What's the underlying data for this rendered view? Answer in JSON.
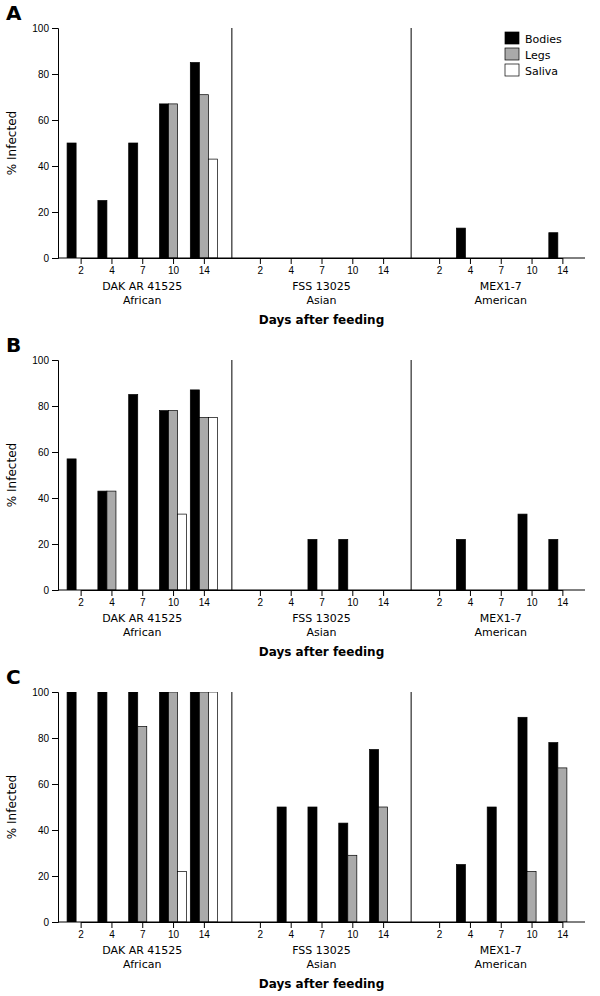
{
  "chart_data": [
    {
      "type": "bar",
      "title": "A",
      "categories": [
        "2",
        "4",
        "7",
        "10",
        "14",
        "2",
        "4",
        "7",
        "10",
        "14",
        "2",
        "4",
        "7",
        "10",
        "14"
      ],
      "annotations": [
        [
          "DAK AR 41525",
          "African"
        ],
        [
          "FSS 13025",
          "Asian"
        ],
        [
          "MEX1-7",
          "American"
        ]
      ],
      "series": [
        {
          "name": "Bodies",
          "color": "#000000",
          "values": [
            50,
            25,
            50,
            67,
            85,
            0,
            0,
            0,
            0,
            0,
            0,
            13,
            0,
            0,
            11
          ]
        },
        {
          "name": "Legs",
          "color": "#aaaaaa",
          "values": [
            0,
            0,
            0,
            67,
            71,
            0,
            0,
            0,
            0,
            0,
            0,
            0,
            0,
            0,
            0
          ]
        },
        {
          "name": "Saliva",
          "color": "#ffffff",
          "values": [
            0,
            0,
            0,
            0,
            43,
            0,
            0,
            0,
            0,
            0,
            0,
            0,
            0,
            0,
            0
          ]
        }
      ],
      "y_label": "% Infected",
      "x_label": "Days after feeding",
      "ylim": [
        0,
        100
      ],
      "yticks": [
        0,
        20,
        40,
        60,
        80,
        100
      ],
      "grid": false,
      "legend": "upper right"
    },
    {
      "type": "bar",
      "title": "B",
      "categories": [
        "2",
        "4",
        "7",
        "10",
        "14",
        "2",
        "4",
        "7",
        "10",
        "14",
        "2",
        "4",
        "7",
        "10",
        "14"
      ],
      "annotations": [
        [
          "DAK AR 41525",
          "African"
        ],
        [
          "FSS 13025",
          "Asian"
        ],
        [
          "MEX1-7",
          "American"
        ]
      ],
      "series": [
        {
          "name": "Bodies",
          "color": "#000000",
          "values": [
            57,
            43,
            85,
            78,
            87,
            0,
            0,
            22,
            22,
            0,
            0,
            22,
            0,
            33,
            22
          ]
        },
        {
          "name": "Legs",
          "color": "#aaaaaa",
          "values": [
            0,
            43,
            0,
            78,
            75,
            0,
            0,
            0,
            0,
            0,
            0,
            0,
            0,
            0,
            0
          ]
        },
        {
          "name": "Saliva",
          "color": "#ffffff",
          "values": [
            0,
            0,
            0,
            33,
            75,
            0,
            0,
            0,
            0,
            0,
            0,
            0,
            0,
            0,
            0
          ]
        }
      ],
      "y_label": "% Infected",
      "x_label": "Days after feeding",
      "ylim": [
        0,
        100
      ],
      "yticks": [
        0,
        20,
        40,
        60,
        80,
        100
      ],
      "grid": false
    },
    {
      "type": "bar",
      "title": "C",
      "categories": [
        "2",
        "4",
        "7",
        "10",
        "14",
        "2",
        "4",
        "7",
        "10",
        "14",
        "2",
        "4",
        "7",
        "10",
        "14"
      ],
      "annotations": [
        [
          "DAK AR 41525",
          "African"
        ],
        [
          "FSS 13025",
          "Asian"
        ],
        [
          "MEX1-7",
          "American"
        ]
      ],
      "series": [
        {
          "name": "Bodies",
          "color": "#000000",
          "values": [
            100,
            100,
            100,
            100,
            100,
            0,
            50,
            50,
            43,
            75,
            0,
            25,
            50,
            89,
            78
          ]
        },
        {
          "name": "Legs",
          "color": "#aaaaaa",
          "values": [
            0,
            0,
            85,
            100,
            100,
            0,
            0,
            0,
            29,
            50,
            0,
            0,
            0,
            22,
            67
          ]
        },
        {
          "name": "Saliva",
          "color": "#ffffff",
          "values": [
            0,
            0,
            0,
            22,
            100,
            0,
            0,
            0,
            0,
            0,
            0,
            0,
            0,
            0,
            0
          ]
        }
      ],
      "y_label": "% Infected",
      "x_label": "Days after feeding",
      "ylim": [
        0,
        100
      ],
      "yticks": [
        0,
        20,
        40,
        60,
        80,
        100
      ],
      "grid": false
    }
  ]
}
